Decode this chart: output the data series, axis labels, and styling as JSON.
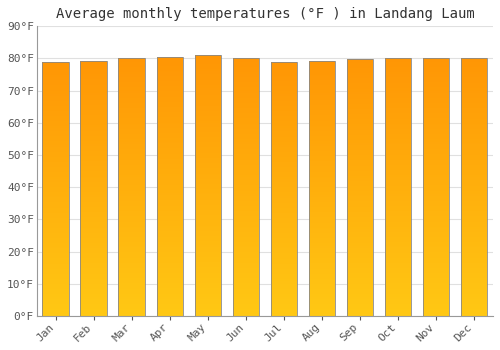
{
  "title": "Average monthly temperatures (°F ) in Landang Laum",
  "months": [
    "Jan",
    "Feb",
    "Mar",
    "Apr",
    "May",
    "Jun",
    "Jul",
    "Aug",
    "Sep",
    "Oct",
    "Nov",
    "Dec"
  ],
  "values": [
    79.0,
    79.3,
    80.1,
    80.5,
    81.0,
    80.1,
    78.9,
    79.2,
    79.7,
    80.0,
    80.1,
    80.0
  ],
  "ylim": [
    0,
    90
  ],
  "yticks": [
    0,
    10,
    20,
    30,
    40,
    50,
    60,
    70,
    80,
    90
  ],
  "ytick_labels": [
    "0°F",
    "10°F",
    "20°F",
    "30°F",
    "40°F",
    "50°F",
    "60°F",
    "70°F",
    "80°F",
    "90°F"
  ],
  "bar_color_center": "#FFCC44",
  "bar_color_edge": "#F5A800",
  "bar_outline_color": "#888888",
  "background_color": "#FFFFFF",
  "grid_color": "#E0E0E0",
  "title_fontsize": 10,
  "tick_fontsize": 8,
  "font_family": "monospace"
}
